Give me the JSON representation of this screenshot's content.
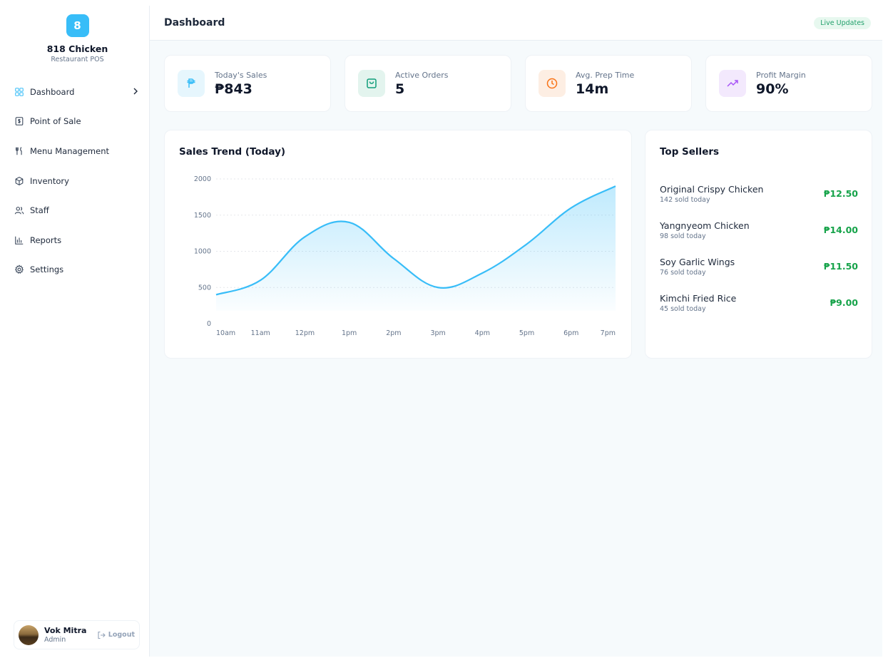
{
  "brand": {
    "logo_letter": "8",
    "name": "818 Chicken",
    "subtitle": "Restaurant POS"
  },
  "sidebar": {
    "items": [
      {
        "label": "Dashboard",
        "icon": "grid-icon",
        "active": true
      },
      {
        "label": "Point of Sale",
        "icon": "dollar-square-icon"
      },
      {
        "label": "Menu Management",
        "icon": "utensils-icon"
      },
      {
        "label": "Inventory",
        "icon": "box-icon"
      },
      {
        "label": "Staff",
        "icon": "users-icon"
      },
      {
        "label": "Reports",
        "icon": "bar-chart-icon"
      },
      {
        "label": "Settings",
        "icon": "gear-icon"
      }
    ]
  },
  "user": {
    "name": "Vok Mitra",
    "role": "Admin",
    "logout_label": "Logout"
  },
  "header": {
    "title": "Dashboard",
    "badge": "Live Updates"
  },
  "stats": [
    {
      "label": "Today's Sales",
      "value": "₱843",
      "icon": "peso-icon",
      "color": "#38bdf8",
      "bg": "#e6f6fd"
    },
    {
      "label": "Active Orders",
      "value": "5",
      "icon": "shopping-bag-icon",
      "color": "#0f9d7a",
      "bg": "#e3f4ee"
    },
    {
      "label": "Avg. Prep Time",
      "value": "14m",
      "icon": "clock-icon",
      "color": "#f97316",
      "bg": "#fdeee3"
    },
    {
      "label": "Profit Margin",
      "value": "90%",
      "icon": "trending-up-icon",
      "color": "#a855f7",
      "bg": "#f3e9fd"
    }
  ],
  "chart_data": {
    "type": "area",
    "title": "Sales Trend (Today)",
    "categories": [
      "10am",
      "11am",
      "12pm",
      "1pm",
      "2pm",
      "3pm",
      "4pm",
      "5pm",
      "6pm",
      "7pm"
    ],
    "values": [
      400,
      600,
      1200,
      1400,
      900,
      500,
      700,
      1100,
      1600,
      1900
    ],
    "ylim": [
      0,
      2000
    ],
    "yticks": [
      0,
      500,
      1000,
      1500,
      2000
    ],
    "color": "#38bdf8",
    "grid": "horizontal-dotted"
  },
  "top_sellers": {
    "title": "Top Sellers",
    "items": [
      {
        "name": "Original Crispy Chicken",
        "sold": "142 sold today",
        "price": "₱12.50"
      },
      {
        "name": "Yangnyeom Chicken",
        "sold": "98 sold today",
        "price": "₱14.00"
      },
      {
        "name": "Soy Garlic Wings",
        "sold": "76 sold today",
        "price": "₱11.50"
      },
      {
        "name": "Kimchi Fried Rice",
        "sold": "45 sold today",
        "price": "₱9.00"
      }
    ]
  }
}
